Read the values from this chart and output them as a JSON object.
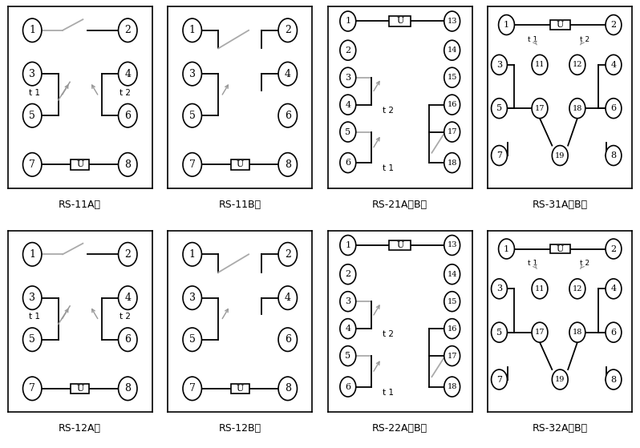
{
  "bg_color": "#ffffff",
  "panels": [
    {
      "id": "RS-11A型",
      "col": 0,
      "row": 0,
      "type": "11A"
    },
    {
      "id": "RS-11B型",
      "col": 1,
      "row": 0,
      "type": "11B"
    },
    {
      "id": "RS-21A、B型",
      "col": 2,
      "row": 0,
      "type": "21AB"
    },
    {
      "id": "RS-31A、B型",
      "col": 3,
      "row": 0,
      "type": "31AB"
    },
    {
      "id": "RS-12A型",
      "col": 0,
      "row": 1,
      "type": "11A"
    },
    {
      "id": "RS-12B型",
      "col": 1,
      "row": 1,
      "type": "11B"
    },
    {
      "id": "RS-22A、B型",
      "col": 2,
      "row": 1,
      "type": "21AB"
    },
    {
      "id": "RS-32A、B型",
      "col": 3,
      "row": 1,
      "type": "31AB"
    }
  ]
}
